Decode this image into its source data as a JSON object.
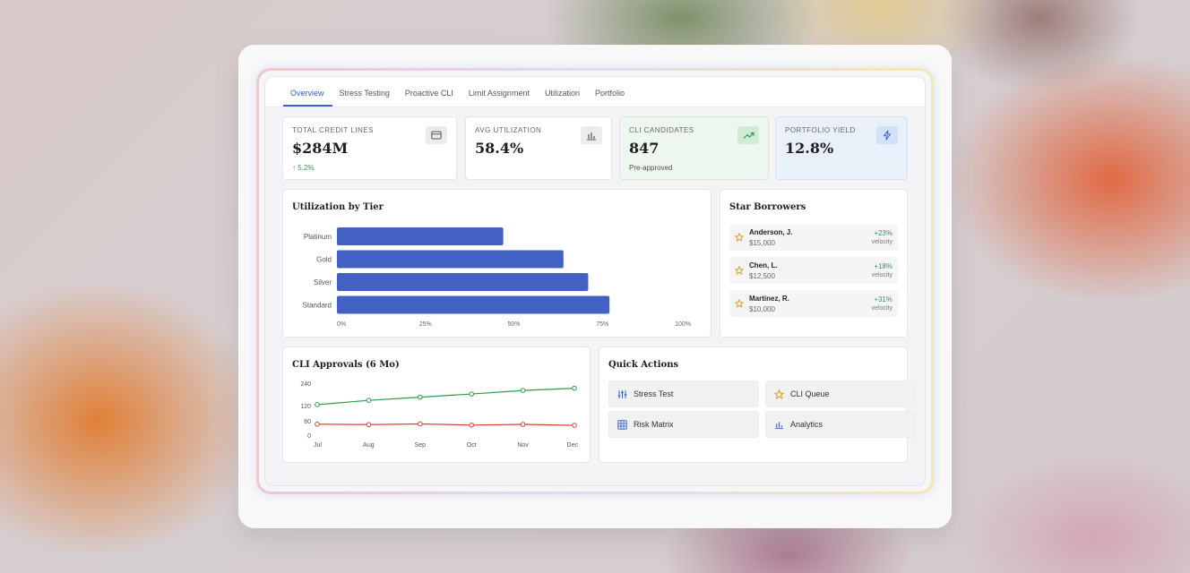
{
  "tabs": [
    {
      "label": "Overview",
      "active": true
    },
    {
      "label": "Stress Testing"
    },
    {
      "label": "Proactive CLI"
    },
    {
      "label": "Limit Assignment"
    },
    {
      "label": "Utilization"
    },
    {
      "label": "Portfolio"
    }
  ],
  "kpis": [
    {
      "label": "TOTAL CREDIT LINES",
      "value": "$284M",
      "sub": "↑ 5.2%",
      "icon": "credit-card-icon"
    },
    {
      "label": "AVG UTILIZATION",
      "value": "58.4%",
      "sub": "",
      "icon": "bar-chart-icon"
    },
    {
      "label": "CLI CANDIDATES",
      "value": "847",
      "sub": "Pre-approved",
      "icon": "trending-up-icon"
    },
    {
      "label": "PORTFOLIO YIELD",
      "value": "12.8%",
      "sub": "",
      "icon": "lightning-icon"
    }
  ],
  "utilization": {
    "title": "Utilization by Tier"
  },
  "star_borrowers": {
    "title": "Star Borrowers",
    "items": [
      {
        "name": "Anderson, J.",
        "amount": "$15,000",
        "change": "+23%",
        "note": "velocity"
      },
      {
        "name": "Chen, L.",
        "amount": "$12,500",
        "change": "+18%",
        "note": "velocity"
      },
      {
        "name": "Martinez, R.",
        "amount": "$10,000",
        "change": "+31%",
        "note": "velocity"
      }
    ]
  },
  "approvals": {
    "title": "CLI Approvals (6 Mo)"
  },
  "quick_actions": {
    "title": "Quick Actions",
    "items": [
      {
        "label": "Stress Test",
        "icon": "sliders-icon"
      },
      {
        "label": "CLI Queue",
        "icon": "star-icon"
      },
      {
        "label": "Risk Matrix",
        "icon": "grid-icon"
      },
      {
        "label": "Analytics",
        "icon": "bar-chart-icon"
      }
    ]
  },
  "colors": {
    "accent": "#3a66d4",
    "bar": "#4361c2",
    "line_green": "#2e9a4a",
    "line_red": "#d94436",
    "positive": "#2e9a4a"
  },
  "chart_data": [
    {
      "type": "bar",
      "orientation": "horizontal",
      "title": "Utilization by Tier",
      "categories": [
        "Platinum",
        "Gold",
        "Silver",
        "Standard"
      ],
      "values": [
        47,
        64,
        71,
        77
      ],
      "xlim": [
        0,
        100
      ],
      "x_ticks": [
        "0%",
        "25%",
        "50%",
        "75%",
        "100%"
      ],
      "grid": false,
      "legend": "none"
    },
    {
      "type": "line",
      "title": "CLI Approvals (6 Mo)",
      "x": [
        "Jul",
        "Aug",
        "Sep",
        "Oct",
        "Nov",
        "Dec"
      ],
      "y_ticks": [
        "240",
        "120",
        "60",
        "0"
      ],
      "ylim": [
        0,
        240
      ],
      "series": [
        {
          "values": [
            125,
            148,
            165,
            182,
            201,
            213
          ]
        },
        {
          "values": [
            46,
            44,
            47,
            42,
            45,
            41
          ]
        }
      ],
      "grid": false,
      "legend": "none"
    }
  ]
}
